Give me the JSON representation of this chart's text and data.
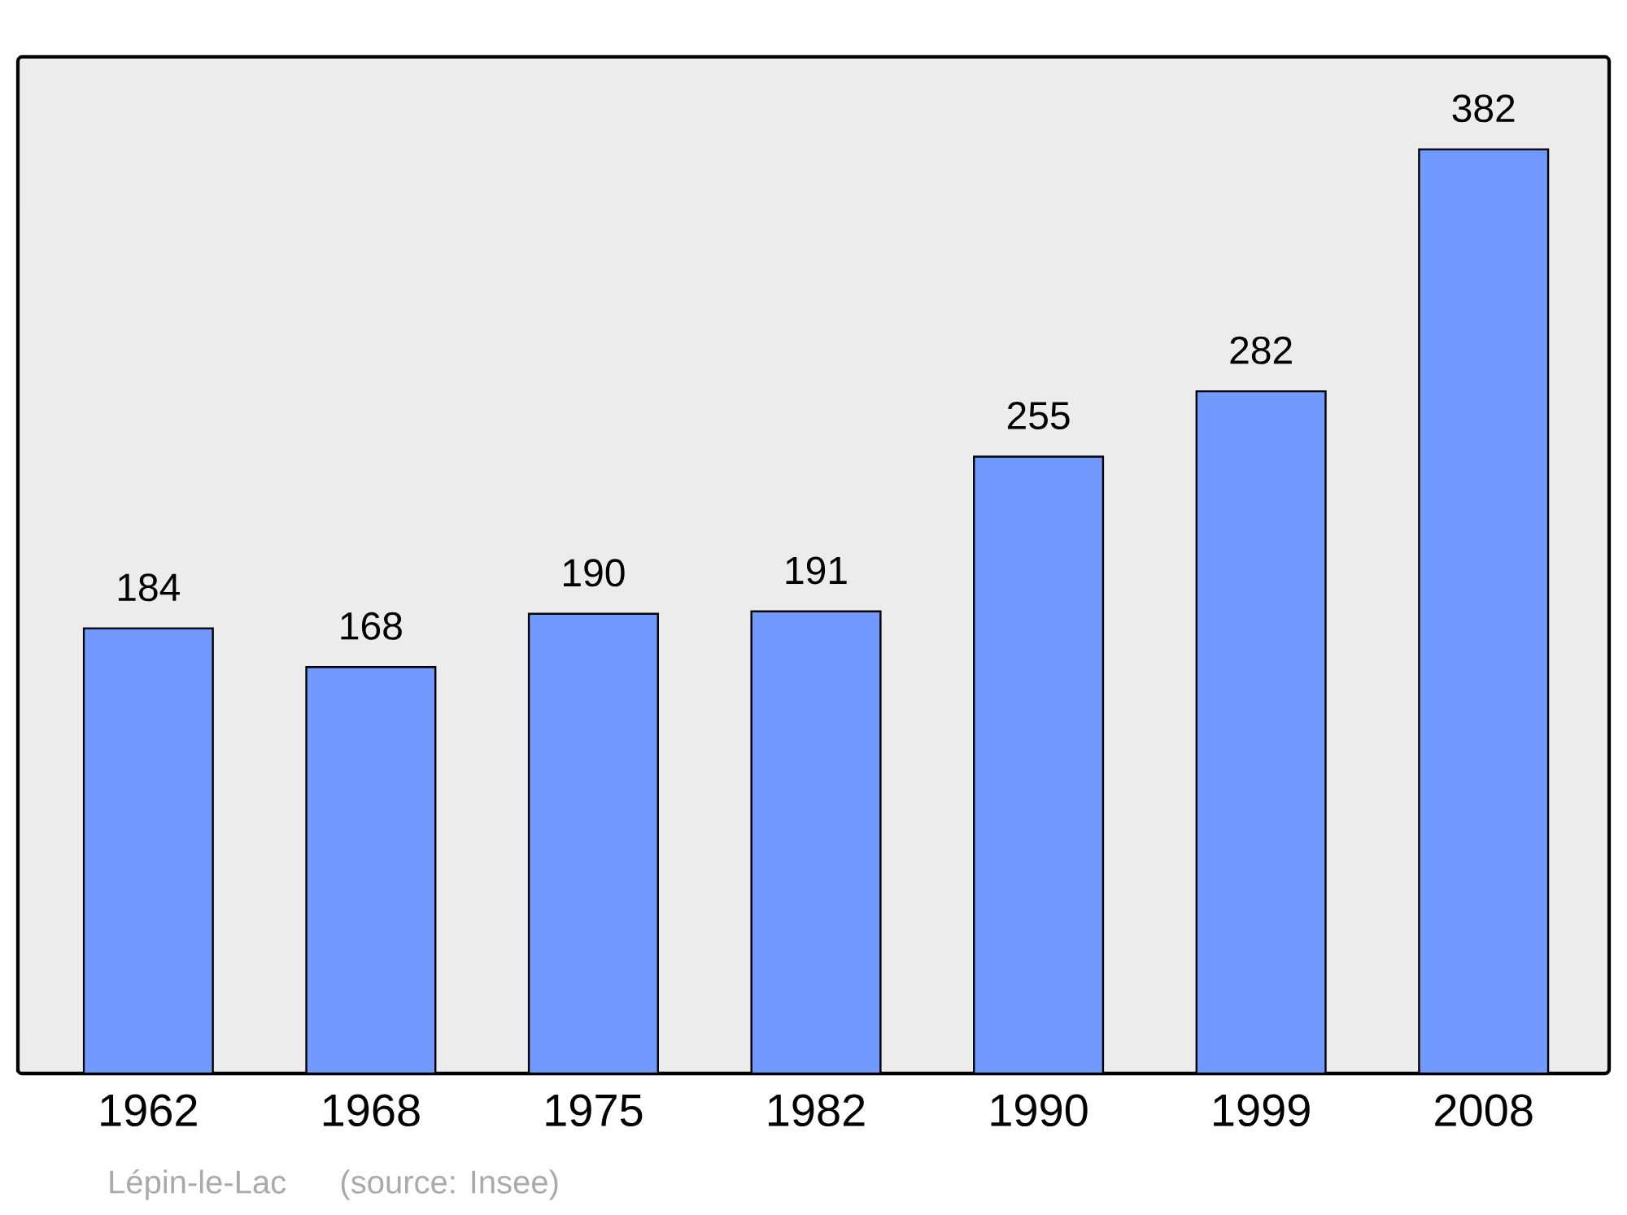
{
  "chart_data": {
    "type": "bar",
    "categories": [
      "1962",
      "1968",
      "1975",
      "1982",
      "1990",
      "1999",
      "2008"
    ],
    "values": [
      184,
      168,
      190,
      191,
      255,
      282,
      382
    ],
    "color": "#7299ff",
    "data_labels": true,
    "annotations": [
      "Lépin-le-Lac",
      "(source: Insee)"
    ]
  }
}
